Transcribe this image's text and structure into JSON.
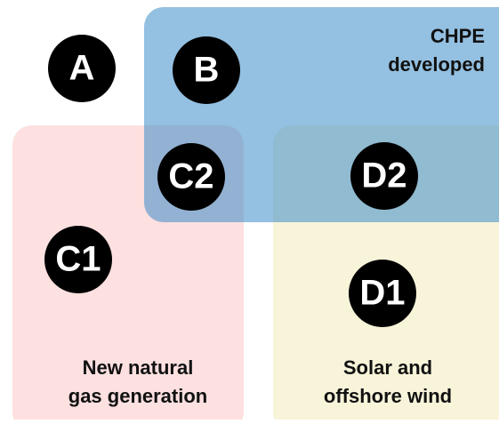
{
  "nodes": [
    {
      "label": "A"
    },
    {
      "label": "B"
    },
    {
      "label": "C2"
    },
    {
      "label": "D2"
    },
    {
      "label": "C1"
    },
    {
      "label": "D1"
    }
  ],
  "regions": [
    {
      "lines": [
        "CHPE",
        "developed"
      ]
    },
    {
      "lines": [
        "New natural",
        "gas generation"
      ]
    },
    {
      "lines": [
        "Solar and",
        "offshore wind"
      ]
    }
  ]
}
